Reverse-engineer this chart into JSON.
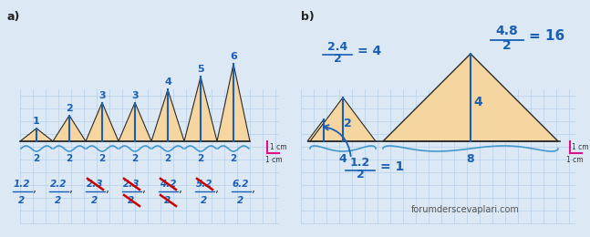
{
  "bg_color": "#dce9f5",
  "grid_color": "#b8d0e8",
  "triangle_fill": "#f5d5a0",
  "triangle_edge": "#2a2a2a",
  "blue": "#1a5fb4",
  "red": "#cc0000",
  "wavy_color": "#4499cc",
  "pink": "#dd1188",
  "dark": "#222222",
  "footer": "forumderscevaplari.com",
  "a_heights": [
    1,
    2,
    3,
    3,
    4,
    5,
    6
  ],
  "a_labels": [
    "1",
    "2",
    "3",
    "3",
    "4",
    "5",
    "6"
  ],
  "fracs": [
    [
      "1.2",
      "2",
      false,
      false
    ],
    [
      "2.2",
      "2",
      false,
      false
    ],
    [
      "2.3",
      "2",
      true,
      false
    ],
    [
      "2.3",
      "2",
      true,
      true
    ],
    [
      "4.2",
      "2",
      true,
      true
    ],
    [
      "5.2",
      "2",
      true,
      false
    ],
    [
      "6.2",
      "2",
      false,
      false
    ]
  ]
}
